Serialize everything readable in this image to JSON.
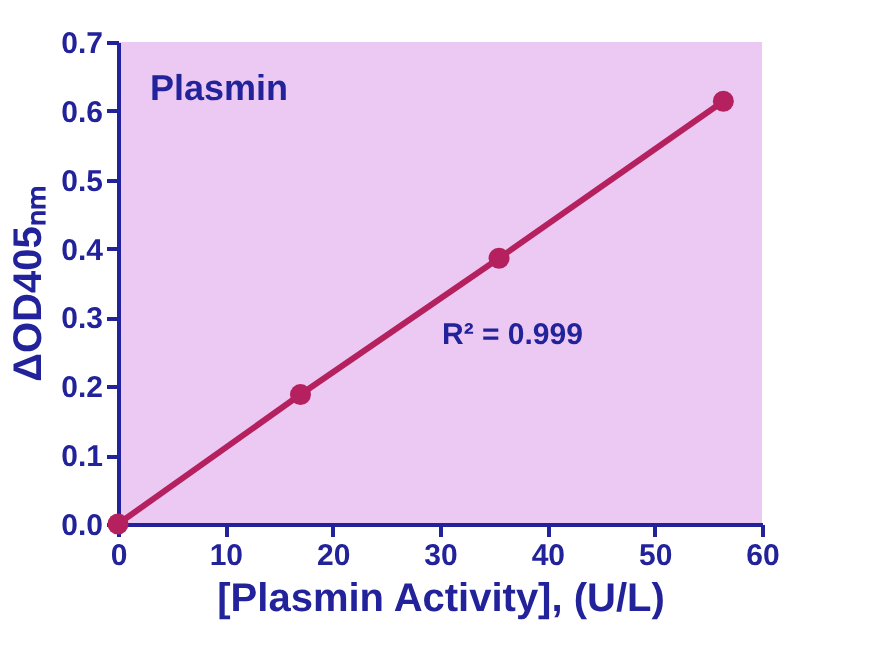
{
  "chart_data": {
    "type": "line",
    "xlabel": "[Plasmin Activity], (U/L)",
    "ylabel": "ΔOD405ₙₘ",
    "annotations": [
      "Plasmin",
      "R² = 0.999"
    ],
    "x": [
      0,
      17,
      35.5,
      56.4
    ],
    "series": [
      {
        "color": "#b5205e",
        "values": [
          0,
          0.188,
          0.386,
          0.614
        ]
      }
    ],
    "xlim": [
      0,
      60
    ],
    "xticks": [
      0,
      10,
      20,
      30,
      40,
      50,
      60
    ],
    "ylim": [
      0,
      0.7
    ],
    "yticks": [
      {
        "value": 0,
        "label": "0.0"
      },
      0.1,
      0.2,
      0.3,
      0.4,
      0.5,
      0.6,
      0.7
    ],
    "grid": false,
    "legend": false,
    "marker": "circle",
    "line_style": "solid"
  }
}
